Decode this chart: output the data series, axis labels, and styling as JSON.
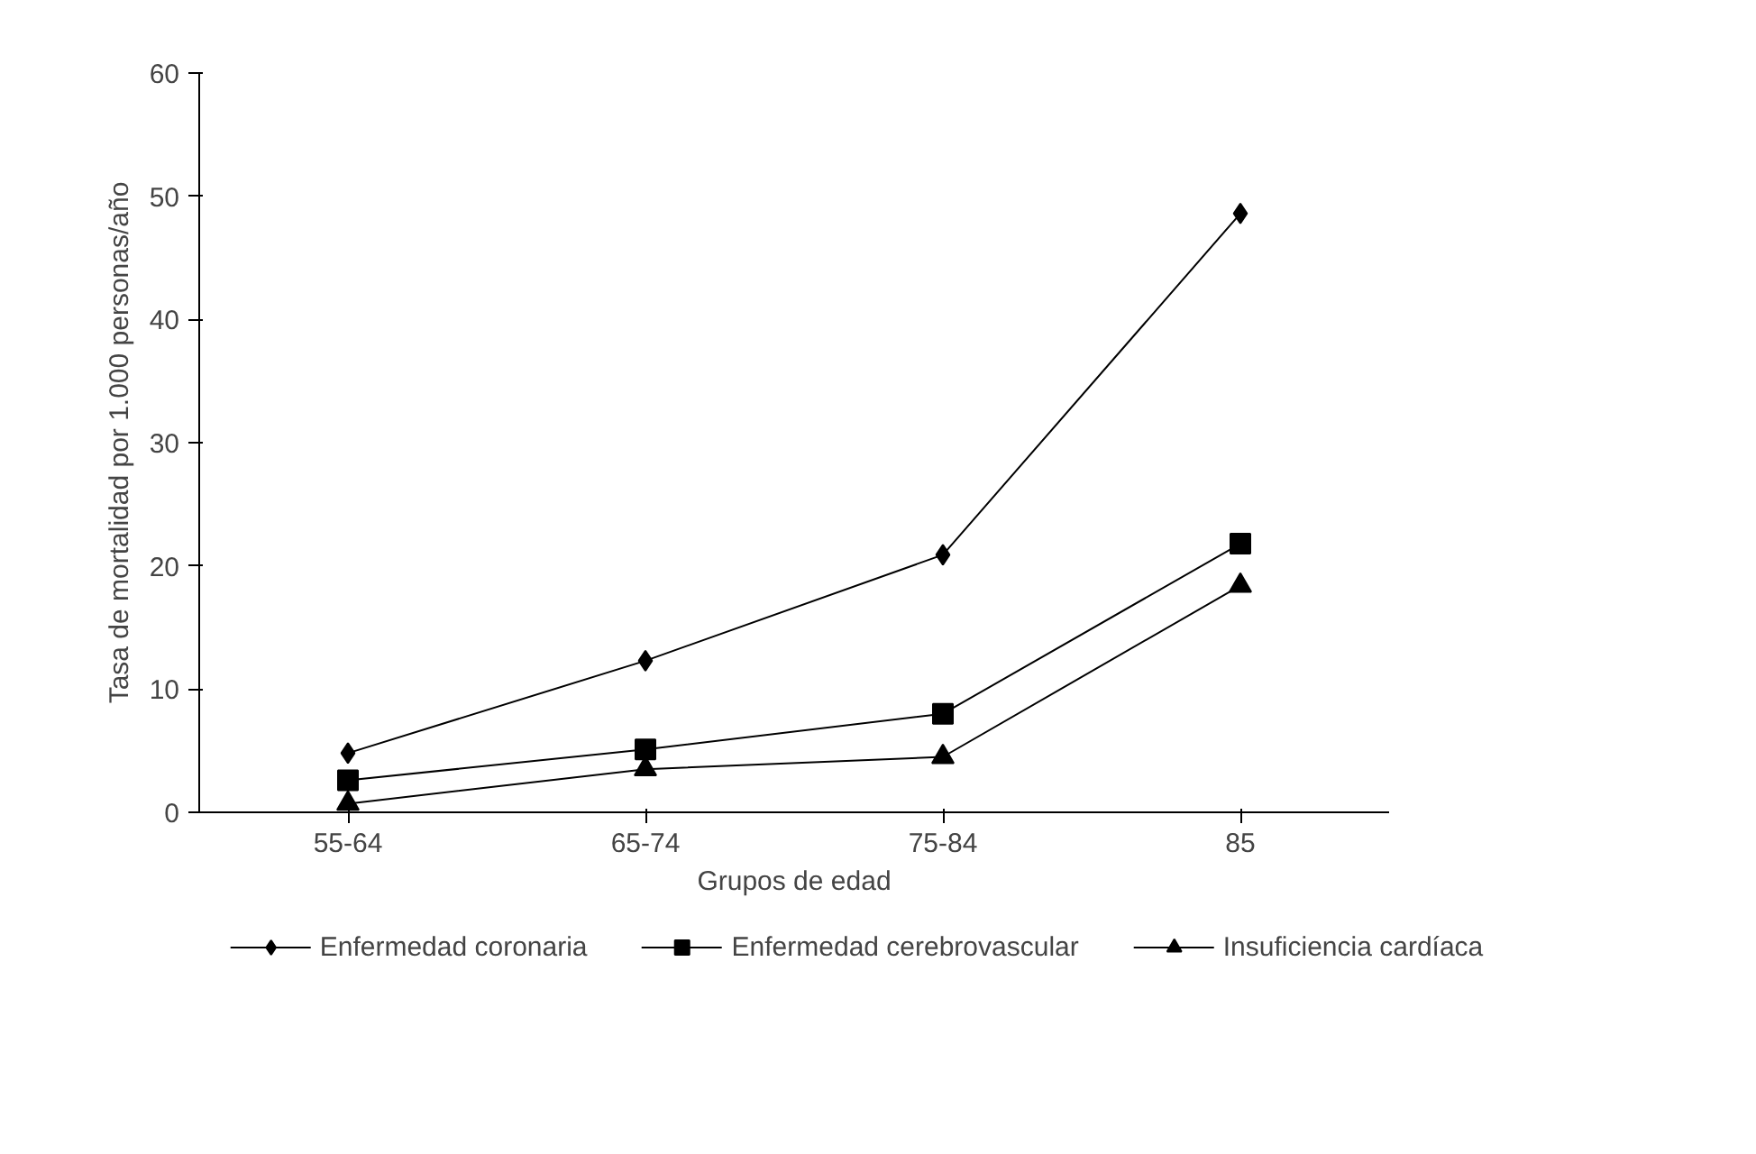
{
  "chart_data": {
    "type": "line",
    "xlabel": "Grupos de edad",
    "ylabel": "Tasa de mortalidad por 1.000 personas/año",
    "categories": [
      "55-64",
      "65-74",
      "75-84",
      "85"
    ],
    "ylim": [
      0,
      60
    ],
    "yticks": [
      0,
      10,
      20,
      30,
      40,
      50,
      60
    ],
    "grid": false,
    "legend": "bottom",
    "series": [
      {
        "name": "Enfermedad coronaria",
        "color": "#000000",
        "marker": "diamond",
        "values": [
          4.8,
          12.3,
          20.9,
          48.6
        ]
      },
      {
        "name": "Enfermedad cerebrovascular",
        "color": "#000000",
        "marker": "square",
        "values": [
          2.6,
          5.1,
          8.0,
          21.8
        ]
      },
      {
        "name": "Insuficiencia cardíaca",
        "color": "#000000",
        "marker": "triangle",
        "values": [
          0.7,
          3.5,
          4.5,
          18.4
        ]
      }
    ]
  }
}
